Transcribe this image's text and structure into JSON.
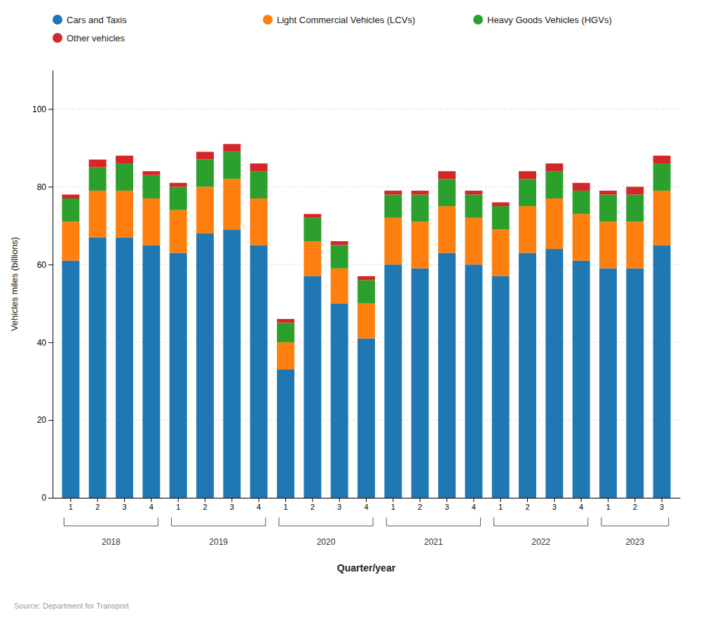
{
  "chart_data": {
    "type": "bar",
    "stacked": true,
    "categories": [
      "1",
      "2",
      "3",
      "4",
      "1",
      "2",
      "3",
      "4",
      "1",
      "2",
      "3",
      "4",
      "1",
      "2",
      "3",
      "4",
      "1",
      "2",
      "3",
      "4",
      "1",
      "2",
      "3"
    ],
    "series": [
      {
        "name": "Cars and Taxis",
        "values": [
          61,
          67,
          67,
          65,
          63,
          68,
          69,
          65,
          33,
          57,
          50,
          41,
          60,
          59,
          63,
          60,
          57,
          63,
          64,
          61,
          59,
          59,
          65
        ]
      },
      {
        "name": "Light Commercial Vehicles (LCVs)",
        "values": [
          10,
          12,
          12,
          12,
          11,
          12,
          13,
          12,
          7,
          9,
          9,
          9,
          12,
          12,
          12,
          12,
          12,
          12,
          13,
          12,
          12,
          12,
          14
        ]
      },
      {
        "name": "Heavy Goods Vehicles (HGVs)",
        "values": [
          6,
          6,
          7,
          6,
          6,
          7,
          7,
          7,
          5,
          6,
          6,
          6,
          6,
          7,
          7,
          6,
          6,
          7,
          7,
          6,
          7,
          7,
          7
        ]
      },
      {
        "name": "Other vehicles",
        "values": [
          1,
          2,
          2,
          1,
          1,
          2,
          2,
          2,
          1,
          1,
          1,
          1,
          1,
          1,
          2,
          1,
          1,
          2,
          2,
          2,
          1,
          2,
          2
        ]
      }
    ],
    "groups": [
      {
        "label": "2018",
        "first": 0,
        "last": 3
      },
      {
        "label": "2019",
        "first": 4,
        "last": 7
      },
      {
        "label": "2020",
        "first": 8,
        "last": 11
      },
      {
        "label": "2021",
        "first": 12,
        "last": 15
      },
      {
        "label": "2022",
        "first": 16,
        "last": 19
      },
      {
        "label": "2023",
        "first": 20,
        "last": 22
      }
    ],
    "xlabel": "Quarter/year",
    "ylabel": "Vehicles miles (billions)",
    "source": "Source: Department for Transport",
    "ylim": [
      0,
      110
    ],
    "yticks": [
      0,
      20,
      40,
      60,
      80,
      100
    ],
    "grid": true,
    "legend": "upper left"
  }
}
